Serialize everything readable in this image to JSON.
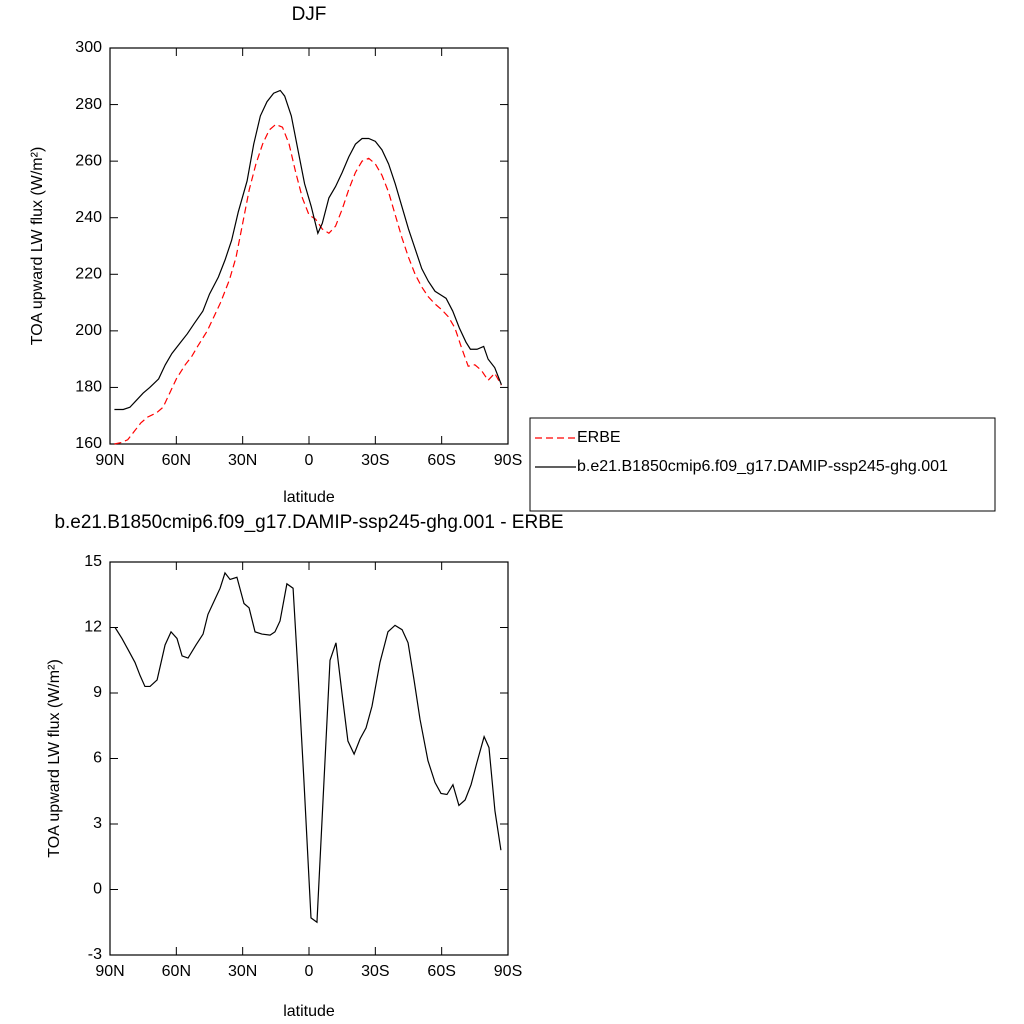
{
  "chart_data": [
    {
      "type": "line",
      "title": "DJF",
      "xlabel": "latitude",
      "ylabel": "TOA upward LW flux (W/m²)",
      "xlim": [
        90,
        -90
      ],
      "ylim": [
        160,
        300
      ],
      "xticks": [
        {
          "value": 90,
          "label": "90N"
        },
        {
          "value": 60,
          "label": "60N"
        },
        {
          "value": 30,
          "label": "30N"
        },
        0,
        {
          "value": -30,
          "label": "30S"
        },
        {
          "value": -60,
          "label": "60S"
        },
        {
          "value": -90,
          "label": "90S"
        }
      ],
      "yticks": [
        160,
        180,
        200,
        220,
        240,
        260,
        280,
        300
      ],
      "legend": "right",
      "series": [
        {
          "name": "ERBE",
          "color": "#ff0000",
          "line_style": "dashed",
          "x": [
            88,
            85,
            82,
            79,
            76,
            73,
            69,
            66,
            63,
            60,
            56,
            53,
            50,
            46,
            43,
            40,
            36,
            33,
            30,
            27,
            24,
            21,
            18,
            15,
            12,
            9,
            6,
            3,
            0,
            -3,
            -6,
            -9,
            -12,
            -15,
            -18,
            -21,
            -24,
            -27,
            -30,
            -33,
            -36,
            -39,
            -42,
            -45,
            -48,
            -51,
            -54,
            -57,
            -60,
            -63,
            -66,
            -69,
            -72,
            -75,
            -78,
            -81,
            -84,
            -87
          ],
          "values": [
            160,
            160.5,
            161.5,
            164.5,
            167.5,
            169.5,
            171,
            173,
            178,
            183,
            188,
            191,
            195,
            200,
            205,
            210,
            218,
            226,
            238,
            250,
            259,
            266,
            271,
            273,
            272,
            266,
            256,
            247,
            241,
            239.5,
            236,
            234.5,
            237,
            243,
            250,
            256,
            260,
            261,
            259,
            255,
            249,
            241,
            233,
            226,
            220,
            215.5,
            212,
            209.5,
            207.5,
            205,
            201,
            194,
            187.5,
            188,
            186,
            182.5,
            185,
            180.8
          ]
        },
        {
          "name": "b.e21.B1850cmip6.f09_g17.DAMIP-ssp245-ghg.001",
          "color": "#000000",
          "line_style": "solid",
          "x": [
            88,
            84,
            81,
            78,
            75,
            72,
            68,
            65,
            62,
            58,
            55,
            52,
            48,
            45,
            41,
            38,
            35,
            32,
            28,
            25,
            22,
            19,
            16,
            13,
            11,
            8,
            5,
            2,
            -1,
            -4,
            -6,
            -9,
            -12,
            -15,
            -18,
            -21,
            -24,
            -27,
            -30,
            -33,
            -36,
            -39,
            -42,
            -45,
            -48,
            -51,
            -54,
            -57,
            -60,
            -62,
            -65,
            -68,
            -71,
            -73,
            -76,
            -79,
            -81,
            -84,
            -87
          ],
          "values": [
            172.2,
            172.2,
            173,
            175.5,
            178,
            180,
            183,
            188,
            192,
            196,
            199,
            202.5,
            207,
            213,
            219,
            225,
            232,
            242,
            253,
            266,
            276,
            281,
            284,
            285,
            283,
            276,
            264,
            252,
            244,
            234.5,
            238,
            247,
            251,
            256,
            261.5,
            266,
            268,
            268,
            267,
            264,
            259,
            252,
            244,
            236,
            229,
            222,
            217.5,
            214,
            212.5,
            211.5,
            207,
            201,
            196,
            193.5,
            193.5,
            194.5,
            190,
            187,
            181
          ]
        }
      ]
    },
    {
      "type": "line",
      "title": "b.e21.B1850cmip6.f09_g17.DAMIP-ssp245-ghg.001 - ERBE",
      "xlabel": "latitude",
      "ylabel": "TOA upward LW flux (W/m²)",
      "xlim": [
        90,
        -90
      ],
      "ylim": [
        -3,
        15
      ],
      "xticks": [
        {
          "value": 90,
          "label": "90N"
        },
        {
          "value": 60,
          "label": "60N"
        },
        {
          "value": 30,
          "label": "30N"
        },
        0,
        {
          "value": -30,
          "label": "30S"
        },
        {
          "value": -60,
          "label": "60S"
        },
        {
          "value": -90,
          "label": "90S"
        }
      ],
      "yticks": [
        -3,
        0,
        3,
        6,
        9,
        12,
        15
      ],
      "series": [
        {
          "color": "#000000",
          "line_style": "solid",
          "x": [
            87.7,
            84.6,
            81.9,
            78.7,
            76.4,
            74.2,
            71.9,
            68.7,
            65.1,
            62.4,
            59.7,
            57.4,
            54.7,
            51.1,
            47.9,
            45.7,
            42.5,
            40.2,
            38.0,
            35.7,
            32.6,
            29.4,
            27.1,
            24.4,
            21.3,
            17.6,
            15.4,
            13.1,
            10.0,
            7.2,
            5.0,
            2.3,
            -0.9,
            -3.6,
            -6.3,
            -9.5,
            -12.2,
            -14.9,
            -17.6,
            -20.4,
            -23.1,
            -25.8,
            -28.5,
            -32.1,
            -35.7,
            -38.9,
            -42.1,
            -44.8,
            -47.5,
            -50.2,
            -53.8,
            -57.0,
            -59.7,
            -62.4,
            -65.1,
            -67.8,
            -70.6,
            -73.3,
            -75.9,
            -79.2,
            -81.4,
            -84.1,
            -86.8
          ],
          "values": [
            12.0,
            11.5,
            11.0,
            10.4,
            9.8,
            9.3,
            9.3,
            9.6,
            11.2,
            11.8,
            11.5,
            10.7,
            10.6,
            11.2,
            11.7,
            12.6,
            13.3,
            13.8,
            14.5,
            14.2,
            14.3,
            13.1,
            12.9,
            11.8,
            11.7,
            11.65,
            11.8,
            12.3,
            14.0,
            13.8,
            10,
            5,
            -1.3,
            -1.5,
            4,
            10.5,
            11.3,
            9,
            6.8,
            6.2,
            6.9,
            7.4,
            8.4,
            10.4,
            11.8,
            12.1,
            11.9,
            11.3,
            9.6,
            7.8,
            5.9,
            4.9,
            4.4,
            4.35,
            4.8,
            3.85,
            4.1,
            4.8,
            5.8,
            7.0,
            6.5,
            3.6,
            1.8
          ]
        }
      ]
    }
  ]
}
